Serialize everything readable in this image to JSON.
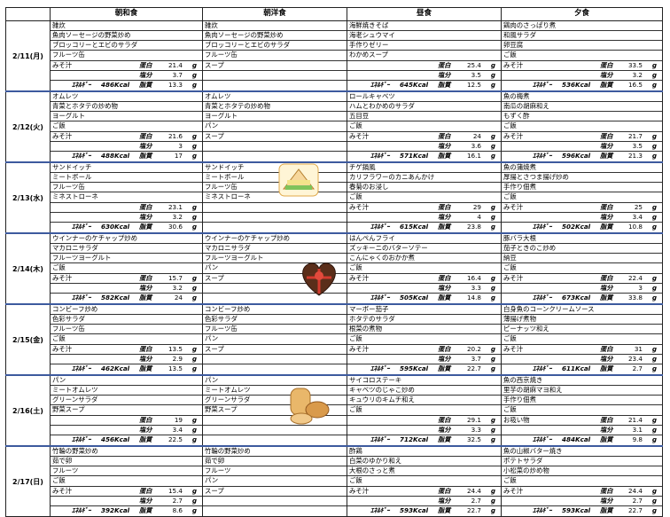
{
  "headers": [
    "",
    "朝和食",
    "朝洋食",
    "昼食",
    "夕食"
  ],
  "labels": {
    "protein": "蛋白",
    "salt": "塩分",
    "energy": "ｴﾈﾙｷﾞｰ",
    "fat": "脂質",
    "g": "g"
  },
  "days": [
    {
      "date": "2/11(月)",
      "meals": [
        {
          "lines": [
            "雑炊",
            "魚肉ソーセージの野菜炒め",
            "ブロッコリーとエビのサラダ",
            "フルーツ缶",
            "みそ汁"
          ],
          "protein": "21.4",
          "salt": "3.7",
          "energy": "486Kcal",
          "fat": "13.3"
        },
        {
          "lines": [
            "雑炊",
            "魚肉ソーセージの野菜炒め",
            "ブロッコリーとエビのサラダ",
            "フルーツ缶",
            "スープ"
          ]
        },
        {
          "lines": [
            "海鮮焼きそば",
            "海老シュウマイ",
            "手作りゼリー",
            "わかめスープ",
            ""
          ],
          "protein": "25.4",
          "salt": "3.5",
          "energy": "645Kcal",
          "fat": "12.5"
        },
        {
          "lines": [
            "鶏肉のさっぱり煮",
            "和風サラダ",
            "卵豆腐",
            "ご飯",
            "みそ汁"
          ],
          "protein": "33.5",
          "salt": "3.2",
          "energy": "536Kcal",
          "fat": "16.5"
        }
      ]
    },
    {
      "date": "2/12(火)",
      "meals": [
        {
          "lines": [
            "オムレツ",
            "青菜とホタテの炒め物",
            "ヨーグルト",
            "ご飯",
            "みそ汁"
          ],
          "protein": "21.6",
          "salt": "3",
          "energy": "488Kcal",
          "fat": "17"
        },
        {
          "lines": [
            "オムレツ",
            "青菜とホタテの炒め物",
            "ヨーグルト",
            "パン",
            "スープ"
          ]
        },
        {
          "lines": [
            "ロールキャベツ",
            "ハムとわかめのサラダ",
            "五目豆",
            "ご飯",
            "みそ汁"
          ],
          "protein": "24",
          "salt": "3.6",
          "energy": "571Kcal",
          "fat": "16.1"
        },
        {
          "lines": [
            "魚の梅煮",
            "南瓜の胡麻和え",
            "もずく酢",
            "ご飯",
            "みそ汁"
          ],
          "protein": "21.7",
          "salt": "3.5",
          "energy": "596Kcal",
          "fat": "21.3"
        }
      ]
    },
    {
      "date": "2/13(水)",
      "meals": [
        {
          "lines": [
            "サンドイッチ",
            "ミートボール",
            "フルーツ缶",
            "ミネストローネ",
            ""
          ],
          "protein": "23.1",
          "salt": "3.2",
          "energy": "630Kcal",
          "fat": "30.6"
        },
        {
          "lines": [
            "サンドイッチ",
            "ミートボール",
            "フルーツ缶",
            "ミネストローネ",
            ""
          ]
        },
        {
          "lines": [
            "チゲ鍋風",
            "カリフラワーのカニあんかけ",
            "春菊のお浸し",
            "ご飯",
            "みそ汁"
          ],
          "protein": "29",
          "salt": "4",
          "energy": "615Kcal",
          "fat": "23.8"
        },
        {
          "lines": [
            "魚の蒲焼煮",
            "厚揚とさつま揚げ炒め",
            "手作り佃煮",
            "ご飯",
            "みそ汁"
          ],
          "protein": "25",
          "salt": "3.4",
          "energy": "502Kcal",
          "fat": "10.8"
        }
      ]
    },
    {
      "date": "2/14(木)",
      "meals": [
        {
          "lines": [
            "ウインナーのケチャップ炒め",
            "マカロニサラダ",
            "フルーツヨーグルト",
            "ご飯",
            "みそ汁"
          ],
          "protein": "15.7",
          "salt": "3.2",
          "energy": "582Kcal",
          "fat": "24"
        },
        {
          "lines": [
            "ウインナーのケチャップ炒め",
            "マカロニサラダ",
            "フルーツヨーグルト",
            "パン",
            "スープ"
          ]
        },
        {
          "lines": [
            "はんぺんフライ",
            "ズッキーニのバターソテー",
            "こんにゃくのおかか煮",
            "ご飯",
            "みそ汁"
          ],
          "protein": "16.4",
          "salt": "3.3",
          "energy": "505Kcal",
          "fat": "14.8"
        },
        {
          "lines": [
            "豚バラ大根",
            "茄子ときのこ炒め",
            "納豆",
            "ご飯",
            "みそ汁"
          ],
          "protein": "22.4",
          "salt": "3",
          "energy": "673Kcal",
          "fat": "33.8"
        }
      ]
    },
    {
      "date": "2/15(金)",
      "meals": [
        {
          "lines": [
            "コンビーフ炒め",
            "色彩サラダ",
            "フルーツ缶",
            "ご飯",
            "みそ汁"
          ],
          "protein": "13.5",
          "salt": "2.9",
          "energy": "462Kcal",
          "fat": "13.5"
        },
        {
          "lines": [
            "コンビーフ炒め",
            "色彩サラダ",
            "フルーツ缶",
            "パン",
            "スープ"
          ]
        },
        {
          "lines": [
            "マーボー茄子",
            "ホタテのサラダ",
            "根菜の煮物",
            "ご飯",
            "みそ汁"
          ],
          "protein": "20.2",
          "salt": "3.7",
          "energy": "595Kcal",
          "fat": "22.7"
        },
        {
          "lines": [
            "白身魚のコーンクリームソース",
            "薄揚げ煮物",
            "ピーナッツ和え",
            "ご飯",
            "みそ汁"
          ],
          "protein": "31",
          "salt": "23.4",
          "energy": "611Kcal",
          "fat": "2.7"
        }
      ]
    },
    {
      "date": "2/16(土)",
      "meals": [
        {
          "lines": [
            "パン",
            "ミートオムレツ",
            "グリーンサラダ",
            "野菜スープ",
            ""
          ],
          "protein": "19",
          "salt": "3.4",
          "energy": "456Kcal",
          "fat": "22.5"
        },
        {
          "lines": [
            "パン",
            "ミートオムレツ",
            "グリーンサラダ",
            "野菜スープ",
            ""
          ]
        },
        {
          "lines": [
            "サイコロステーキ",
            "キャベツのじゃこ炒め",
            "キュウリのキムチ和え",
            "ご飯",
            ""
          ],
          "protein": "29.1",
          "salt": "3.3",
          "energy": "712Kcal",
          "fat": "32.5"
        },
        {
          "lines": [
            "魚の西京焼き",
            "里芋の胡麻マヨ和え",
            "手作り佃煮",
            "ご飯",
            "お吸い物"
          ],
          "protein": "21.4",
          "salt": "3.1",
          "energy": "484Kcal",
          "fat": "9.8"
        }
      ]
    },
    {
      "date": "2/17(日)",
      "meals": [
        {
          "lines": [
            "竹輪の野菜炒め",
            "茹で卵",
            "フルーツ",
            "ご飯",
            "みそ汁"
          ],
          "protein": "15.4",
          "salt": "2.7",
          "energy": "392Kcal",
          "fat": "8.6"
        },
        {
          "lines": [
            "竹輪の野菜炒め",
            "茹で卵",
            "フルーツ",
            "パン",
            "スープ"
          ]
        },
        {
          "lines": [
            "酢鶏",
            "白菜のゆかり和え",
            "大根のさっと煮",
            "ご飯",
            "みそ汁"
          ],
          "protein": "24.4",
          "salt": "2.7",
          "energy": "593Kcal",
          "fat": "22.7"
        },
        {
          "lines": [
            "魚の山椒バター焼き",
            "ポテトサラダ",
            "小松菜の炒め物",
            "ご飯",
            "みそ汁"
          ],
          "protein": "24.4",
          "salt": "2.7",
          "energy": "593Kcal",
          "fat": "22.7"
        }
      ]
    }
  ],
  "illustrations": [
    {
      "name": "sandwich-illustration",
      "day": 2
    },
    {
      "name": "chocolate-heart-illustration",
      "day": 3
    },
    {
      "name": "bread-illustration",
      "day": 5
    }
  ]
}
